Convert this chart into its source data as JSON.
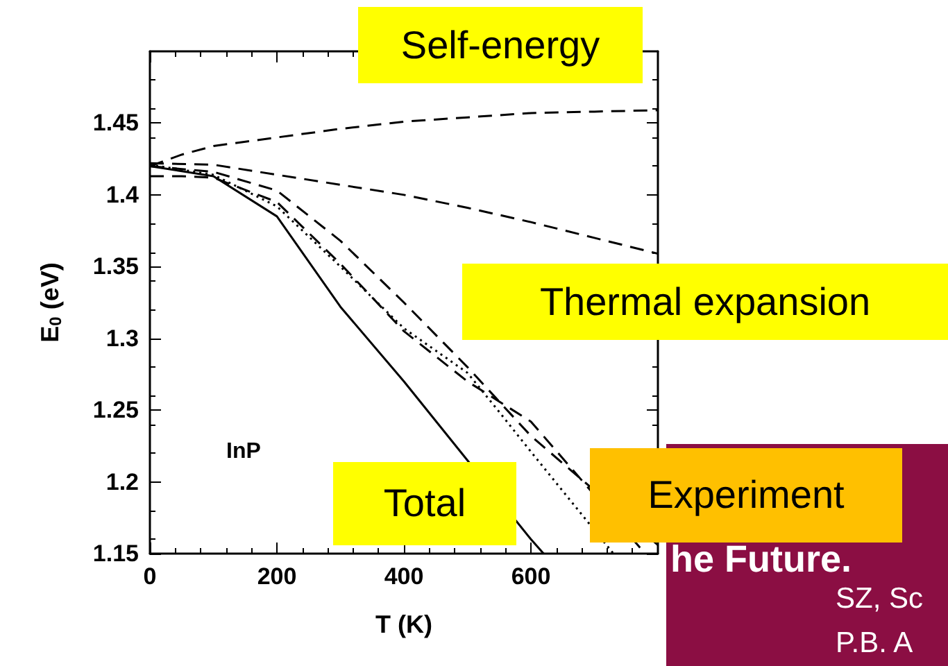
{
  "chart_data": {
    "type": "line",
    "xlabel": "T (K)",
    "ylabel": "E$_{0}$ (eV)",
    "xlim": [
      0,
      800
    ],
    "xticks": [
      0,
      200,
      400,
      600
    ],
    "ylim": [
      1.15,
      1.5
    ],
    "yticks": [
      1.15,
      1.2,
      1.25,
      1.3,
      1.35,
      1.4,
      1.45
    ],
    "grid": false,
    "marker": "none",
    "series": [
      {
        "color": "#000000",
        "line_style": "dashed",
        "x": [
          0,
          50,
          100,
          200,
          300,
          400,
          500,
          600,
          700,
          800
        ],
        "values": [
          1.42,
          1.428,
          1.434,
          1.44,
          1.446,
          1.451,
          1.454,
          1.457,
          1.458,
          1.459
        ]
      },
      {
        "color": "#000000",
        "line_style": "dashed",
        "x": [
          0,
          100,
          200,
          300,
          400,
          500,
          600,
          700,
          800
        ],
        "values": [
          1.422,
          1.421,
          1.414,
          1.407,
          1.4,
          1.391,
          1.381,
          1.37,
          1.359
        ]
      },
      {
        "color": "#000000",
        "line_style": "solid",
        "x": [
          0,
          100,
          200,
          300,
          400,
          500,
          600,
          620
        ],
        "values": [
          1.42,
          1.413,
          1.385,
          1.322,
          1.27,
          1.215,
          1.16,
          1.15
        ]
      },
      {
        "color": "#000000",
        "line_style": "dotted",
        "x": [
          0,
          100,
          200,
          300,
          400,
          500,
          546,
          600,
          730
        ],
        "values": [
          1.421,
          1.414,
          1.392,
          1.35,
          1.307,
          1.276,
          1.251,
          1.221,
          1.15
        ]
      },
      {
        "color": "#000000",
        "line_style": "dashed",
        "x": [
          0,
          100,
          200,
          300,
          400,
          500,
          600,
          800
        ],
        "values": [
          1.42,
          1.416,
          1.403,
          1.368,
          1.325,
          1.28,
          1.232,
          1.156
        ]
      },
      {
        "color": "#000000",
        "line_style": "dashed",
        "x": [
          0,
          50,
          100,
          200,
          300,
          400,
          500,
          600,
          780
        ],
        "values": [
          1.413,
          1.413,
          1.412,
          1.395,
          1.352,
          1.305,
          1.27,
          1.242,
          1.15
        ]
      }
    ],
    "annotations": [
      "Self-energy",
      "Thermal expansion",
      "Total",
      "Experiment",
      "InP",
      "he Future.",
      "SZ, Sc",
      "P.B. A"
    ]
  }
}
